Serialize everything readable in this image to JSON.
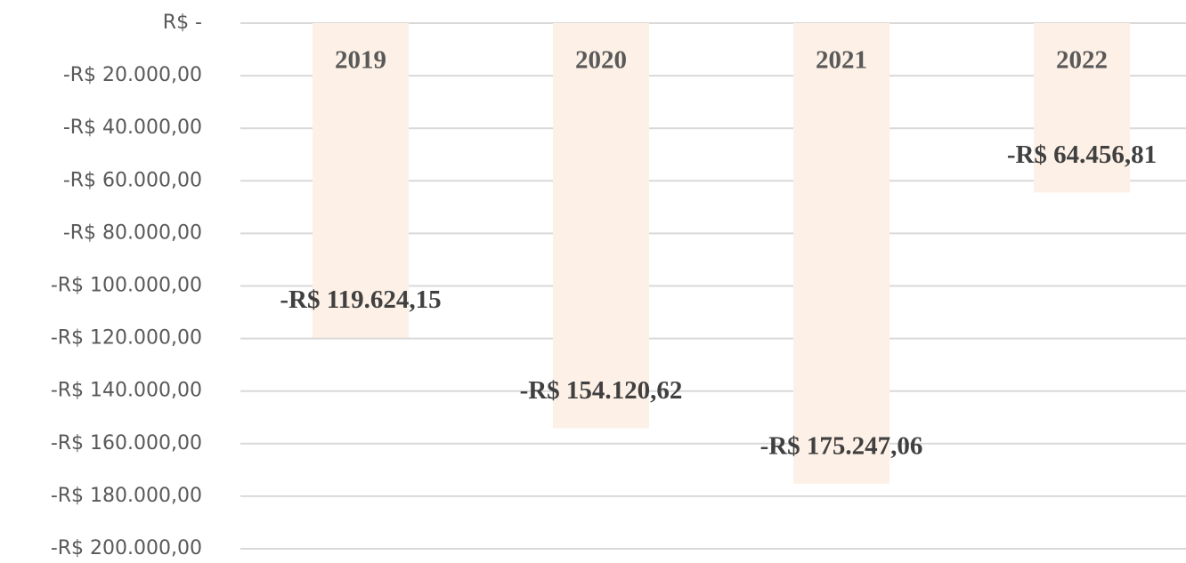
{
  "chart_data": {
    "type": "bar",
    "categories": [
      "2019",
      "2020",
      "2021",
      "2022"
    ],
    "values": [
      -119624.15,
      -154120.62,
      -175247.06,
      -64456.81
    ],
    "value_labels": [
      "-R$ 119.624,15",
      "-R$ 154.120,62",
      "-R$ 175.247,06",
      "-R$ 64.456,81"
    ],
    "color": "#fdf0e6",
    "ylim": [
      -200000,
      0
    ],
    "yticks": [
      {
        "value": 0,
        "label": "R$ -"
      },
      {
        "value": -20000,
        "label": "-R$ 20.000,00"
      },
      {
        "value": -40000,
        "label": "-R$ 40.000,00"
      },
      {
        "value": -60000,
        "label": "-R$ 60.000,00"
      },
      {
        "value": -80000,
        "label": "-R$ 80.000,00"
      },
      {
        "value": -100000,
        "label": "-R$ 100.000,00"
      },
      {
        "value": -120000,
        "label": "-R$ 120.000,00"
      },
      {
        "value": -140000,
        "label": "-R$ 140.000,00"
      },
      {
        "value": -160000,
        "label": "-R$ 160.000,00"
      },
      {
        "value": -180000,
        "label": "-R$ 180.000,00"
      },
      {
        "value": -200000,
        "label": "-R$ 200.000,00"
      }
    ],
    "grid": true
  }
}
